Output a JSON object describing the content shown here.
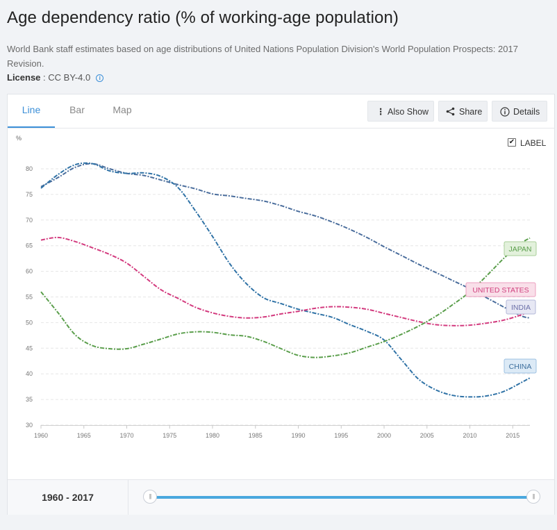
{
  "page": {
    "title": "Age dependency ratio (% of working-age population)",
    "source": "World Bank staff estimates based on age distributions of United Nations Population Division's World Population Prospects: 2017 Revision.",
    "license_key": "License",
    "license_sep": " : ",
    "license_value": "CC BY-4.0",
    "info_icon": "i"
  },
  "tabs": [
    {
      "label": "Line",
      "active": true
    },
    {
      "label": "Bar",
      "active": false
    },
    {
      "label": "Map",
      "active": false
    }
  ],
  "toolbar": {
    "also_show": "Also Show",
    "share": "Share",
    "details": "Details",
    "also_show_icon": "⋮",
    "share_icon": "share-icon",
    "details_icon": "i"
  },
  "label_toggle": {
    "label": "LABEL",
    "checked": true,
    "check_glyph": "✔"
  },
  "range": {
    "start": "1960",
    "sep": " - ",
    "end": "2017",
    "handle_glyph": "|||"
  },
  "chart_data": {
    "type": "line",
    "title": "Age dependency ratio (% of working-age population)",
    "ylabel": "%",
    "xlabel": "",
    "xlim": [
      1960,
      2017
    ],
    "ylim": [
      30,
      80
    ],
    "xticks": [
      1960,
      1965,
      1970,
      1975,
      1980,
      1985,
      1990,
      1995,
      2000,
      2005,
      2010,
      2015
    ],
    "yticks": [
      30,
      35,
      40,
      45,
      50,
      55,
      60,
      65,
      70,
      75,
      80
    ],
    "grid": true,
    "legend": "inline labels at line ends (right)",
    "series": [
      {
        "name": "INDIA",
        "color": "#4a6d9c",
        "label_bg": "#e7e8f4",
        "label_border": "#b3b7d8",
        "label_color": "#6b6fa8",
        "x": [
          1960,
          1962,
          1964,
          1966,
          1968,
          1970,
          1972,
          1974,
          1976,
          1978,
          1980,
          1982,
          1984,
          1986,
          1988,
          1990,
          1992,
          1994,
          1996,
          1998,
          2000,
          2002,
          2004,
          2006,
          2008,
          2010,
          2012,
          2014,
          2016,
          2017
        ],
        "y": [
          76.5,
          78.3,
          80.3,
          81.0,
          80.0,
          79.1,
          78.7,
          77.8,
          76.9,
          76.1,
          75.1,
          74.7,
          74.2,
          73.7,
          72.8,
          71.7,
          70.8,
          69.6,
          68.2,
          66.6,
          64.8,
          63.1,
          61.4,
          59.8,
          58.2,
          56.6,
          54.8,
          53.0,
          51.3,
          50.9
        ]
      },
      {
        "name": "CHINA",
        "color": "#2f72a6",
        "label_bg": "#dceaf6",
        "label_border": "#9cc0e2",
        "label_color": "#3b6d9c",
        "x": [
          1960,
          1962,
          1964,
          1966,
          1968,
          1970,
          1972,
          1974,
          1976,
          1978,
          1980,
          1982,
          1984,
          1986,
          1988,
          1990,
          1992,
          1994,
          1996,
          1998,
          2000,
          2002,
          2004,
          2006,
          2008,
          2010,
          2012,
          2014,
          2016,
          2017
        ],
        "y": [
          76.2,
          78.9,
          80.8,
          81.0,
          79.6,
          79.1,
          79.2,
          78.5,
          76.3,
          71.8,
          66.8,
          61.5,
          57.5,
          54.8,
          53.7,
          52.6,
          51.8,
          51.0,
          49.6,
          48.3,
          46.6,
          42.8,
          39.0,
          36.9,
          35.8,
          35.5,
          35.7,
          36.6,
          38.3,
          39.2
        ]
      },
      {
        "name": "UNITED STATES",
        "color": "#d33a7e",
        "label_bg": "#f9dfe9",
        "label_border": "#ec9fbf",
        "label_color": "#d0407e",
        "x": [
          1960,
          1962,
          1964,
          1966,
          1968,
          1970,
          1972,
          1974,
          1976,
          1978,
          1980,
          1982,
          1984,
          1986,
          1988,
          1990,
          1992,
          1994,
          1996,
          1998,
          2000,
          2002,
          2004,
          2006,
          2008,
          2010,
          2012,
          2014,
          2016,
          2017
        ],
        "y": [
          66.1,
          66.6,
          65.8,
          64.6,
          63.3,
          61.6,
          59.0,
          56.4,
          54.7,
          53.0,
          51.9,
          51.2,
          50.9,
          51.1,
          51.7,
          52.2,
          52.8,
          53.1,
          53.0,
          52.6,
          51.8,
          51.0,
          50.2,
          49.6,
          49.4,
          49.5,
          49.9,
          50.5,
          51.5,
          52.3
        ]
      },
      {
        "name": "JAPAN",
        "color": "#5a9e4b",
        "label_bg": "#e3f1dc",
        "label_border": "#a8cf98",
        "label_color": "#5a9e4b",
        "x": [
          1960,
          1962,
          1964,
          1966,
          1968,
          1970,
          1972,
          1974,
          1976,
          1978,
          1980,
          1982,
          1984,
          1986,
          1988,
          1990,
          1992,
          1994,
          1996,
          1998,
          2000,
          2002,
          2004,
          2006,
          2008,
          2010,
          2012,
          2014,
          2016,
          2017
        ],
        "y": [
          56.0,
          51.9,
          47.6,
          45.5,
          44.9,
          44.9,
          45.8,
          46.8,
          47.8,
          48.2,
          48.1,
          47.6,
          47.3,
          46.3,
          44.9,
          43.6,
          43.2,
          43.5,
          44.1,
          45.2,
          46.3,
          47.7,
          49.3,
          51.2,
          53.5,
          56.0,
          59.2,
          62.6,
          65.5,
          66.5
        ]
      }
    ]
  }
}
